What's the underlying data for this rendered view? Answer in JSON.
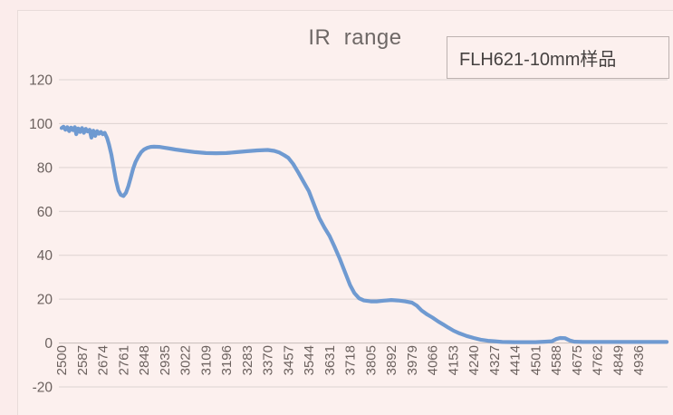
{
  "colors": {
    "page_background": "#fbeceb",
    "chart_background": "#fcf0ee",
    "gridline": "#ddd3d1",
    "zero_axis": "#c6bbb9",
    "tick_text": "#6b615e",
    "title_text": "#6e6866",
    "legend_border": "#bdb2b0",
    "legend_text": "#454140",
    "series_line": "#6f9ad1"
  },
  "chart_data": {
    "type": "line",
    "title": "IR  range",
    "legend": "FLH621-10mm样品",
    "legend_position": "top-right",
    "grid": "horizontal",
    "xlabel": "",
    "ylabel": "",
    "ylim": [
      -20,
      120
    ],
    "y_ticks": [
      120,
      100,
      80,
      60,
      40,
      20,
      0,
      -20
    ],
    "x_start": 2500,
    "x_step": 87,
    "x_tick_labels": [
      "2500",
      "2587",
      "2674",
      "2761",
      "2848",
      "2935",
      "3022",
      "3109",
      "3196",
      "3283",
      "3370",
      "3457",
      "3544",
      "3631",
      "3718",
      "3805",
      "3892",
      "3979",
      "4066",
      "4153",
      "4240",
      "4327",
      "4414",
      "4501",
      "4588",
      "4675",
      "4762",
      "4849",
      "4936"
    ],
    "series": [
      {
        "name": "FLH621-10mm样品",
        "color": "#6f9ad1",
        "values_at_labels": [
          98,
          96,
          95,
          67,
          88,
          89,
          87.5,
          86.5,
          86.5,
          87.5,
          88,
          84.5,
          69,
          49,
          26,
          19,
          19.5,
          18.5,
          11.5,
          6,
          2.5,
          1,
          0.5,
          0.5,
          2,
          0.5,
          0.5,
          0.5,
          0.5
        ],
        "samples": [
          [
            2500,
            98
          ],
          [
            2508,
            98.6
          ],
          [
            2516,
            97.2
          ],
          [
            2524,
            98.4
          ],
          [
            2532,
            96.6
          ],
          [
            2540,
            98.2
          ],
          [
            2548,
            97
          ],
          [
            2556,
            98.4
          ],
          [
            2562,
            95.2
          ],
          [
            2570,
            97.8
          ],
          [
            2578,
            96.2
          ],
          [
            2586,
            98
          ],
          [
            2594,
            95.8
          ],
          [
            2602,
            97.6
          ],
          [
            2610,
            96.4
          ],
          [
            2618,
            97.2
          ],
          [
            2626,
            93.6
          ],
          [
            2634,
            96.8
          ],
          [
            2642,
            94.4
          ],
          [
            2650,
            96.6
          ],
          [
            2658,
            95.4
          ],
          [
            2666,
            96.2
          ],
          [
            2674,
            95.2
          ],
          [
            2682,
            95.8
          ],
          [
            2692,
            93.5
          ],
          [
            2700,
            90.5
          ],
          [
            2710,
            86
          ],
          [
            2720,
            80
          ],
          [
            2730,
            74
          ],
          [
            2740,
            69.5
          ],
          [
            2750,
            67.5
          ],
          [
            2761,
            67
          ],
          [
            2772,
            68.5
          ],
          [
            2782,
            71.5
          ],
          [
            2792,
            75.5
          ],
          [
            2802,
            79.5
          ],
          [
            2812,
            82.5
          ],
          [
            2824,
            85
          ],
          [
            2836,
            87
          ],
          [
            2848,
            88.2
          ],
          [
            2862,
            89
          ],
          [
            2876,
            89.4
          ],
          [
            2890,
            89.5
          ],
          [
            2912,
            89.4
          ],
          [
            2935,
            89
          ],
          [
            2958,
            88.6
          ],
          [
            2980,
            88.2
          ],
          [
            3022,
            87.6
          ],
          [
            3065,
            87
          ],
          [
            3109,
            86.6
          ],
          [
            3152,
            86.5
          ],
          [
            3196,
            86.6
          ],
          [
            3240,
            87
          ],
          [
            3283,
            87.4
          ],
          [
            3326,
            87.8
          ],
          [
            3370,
            88
          ],
          [
            3398,
            87.6
          ],
          [
            3420,
            86.8
          ],
          [
            3440,
            85.6
          ],
          [
            3457,
            84.4
          ],
          [
            3478,
            81.6
          ],
          [
            3500,
            77.6
          ],
          [
            3522,
            73.4
          ],
          [
            3544,
            69.2
          ],
          [
            3566,
            63
          ],
          [
            3588,
            57
          ],
          [
            3610,
            52.5
          ],
          [
            3631,
            48.8
          ],
          [
            3652,
            44
          ],
          [
            3674,
            38.5
          ],
          [
            3696,
            32.5
          ],
          [
            3718,
            26.4
          ],
          [
            3736,
            22.8
          ],
          [
            3756,
            20.4
          ],
          [
            3776,
            19.4
          ],
          [
            3805,
            19
          ],
          [
            3830,
            19
          ],
          [
            3860,
            19.3
          ],
          [
            3892,
            19.6
          ],
          [
            3920,
            19.4
          ],
          [
            3950,
            19
          ],
          [
            3979,
            18.4
          ],
          [
            4000,
            17
          ],
          [
            4020,
            14.8
          ],
          [
            4044,
            13
          ],
          [
            4066,
            11.6
          ],
          [
            4090,
            9.8
          ],
          [
            4112,
            8.4
          ],
          [
            4133,
            7
          ],
          [
            4155,
            5.6
          ],
          [
            4180,
            4.4
          ],
          [
            4210,
            3.2
          ],
          [
            4240,
            2.3
          ],
          [
            4270,
            1.5
          ],
          [
            4300,
            1
          ],
          [
            4327,
            0.8
          ],
          [
            4360,
            0.5
          ],
          [
            4414,
            0.4
          ],
          [
            4460,
            0.4
          ],
          [
            4501,
            0.4
          ],
          [
            4540,
            0.6
          ],
          [
            4570,
            0.8
          ],
          [
            4588,
            1.8
          ],
          [
            4605,
            2.3
          ],
          [
            4625,
            2.2
          ],
          [
            4645,
            1.2
          ],
          [
            4665,
            0.6
          ],
          [
            4700,
            0.5
          ],
          [
            4762,
            0.5
          ],
          [
            4849,
            0.5
          ],
          [
            4936,
            0.5
          ],
          [
            5055,
            0.5
          ]
        ]
      }
    ]
  }
}
